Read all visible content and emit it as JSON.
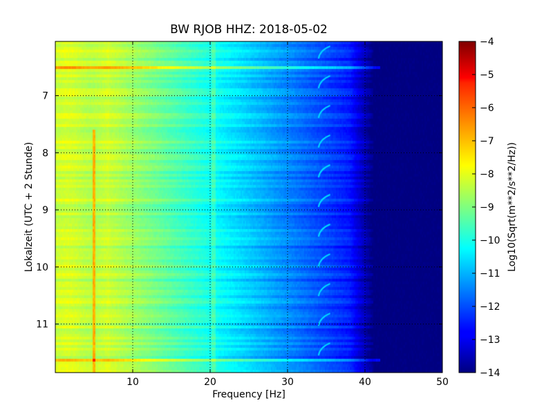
{
  "chart_data": {
    "type": "heatmap",
    "title": "BW RJOB HHZ: 2018-05-02",
    "xlabel": "Frequency [Hz]",
    "ylabel": "Lokalzeit (UTC + 2 Stunde)",
    "xlim": [
      0,
      50
    ],
    "ylim": [
      11.85,
      6.05
    ],
    "x_ticks": [
      10,
      20,
      30,
      40,
      50
    ],
    "y_ticks": [
      7,
      8,
      9,
      10,
      11
    ],
    "grid": true,
    "colormap": "jet",
    "colorbar": {
      "label": "Log10(Sqrt(m**2/s**2/Hz))",
      "range": [
        -14,
        -4
      ],
      "ticks": [
        -4,
        -5,
        -6,
        -7,
        -8,
        -9,
        -10,
        -11,
        -12,
        -13,
        -14
      ]
    },
    "features": {
      "low_freq_band_hz": [
        0,
        7
      ],
      "low_freq_level": -8.3,
      "narrow_line_hz": 5,
      "narrow_line_level": -7,
      "line_20hz": 20.5,
      "chirp_hz": [
        34,
        35.5
      ],
      "rolloff_start_hz": 38,
      "rolloff_end_hz": 41,
      "high_freq_level": -14,
      "strong_rows_hours": [
        6.5,
        11.65
      ]
    }
  }
}
